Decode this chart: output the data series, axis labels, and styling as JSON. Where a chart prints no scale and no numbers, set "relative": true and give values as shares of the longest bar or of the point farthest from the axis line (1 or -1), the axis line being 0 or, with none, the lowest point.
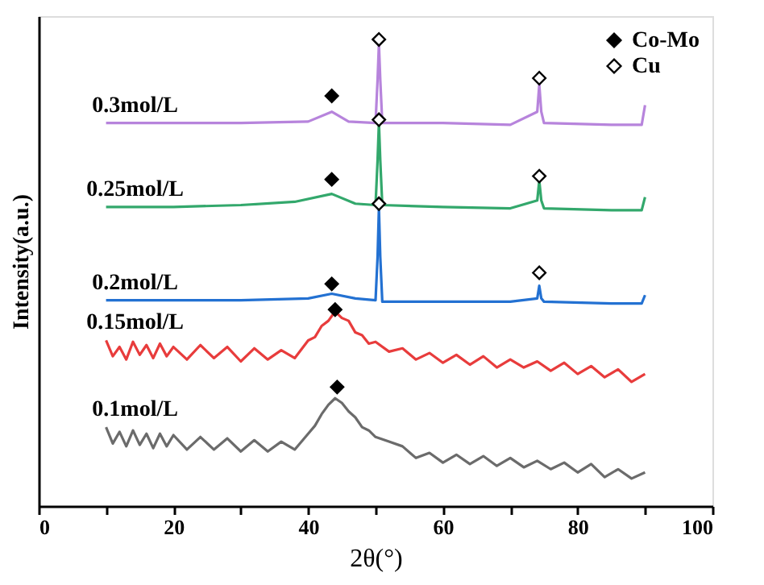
{
  "chart_data": {
    "type": "line",
    "relative": true,
    "xlabel": "2θ(°)",
    "ylabel": "Intensity(a.u.)",
    "xlim": [
      0,
      100
    ],
    "xticks": [
      0,
      {
        "value": 10,
        "label": null
      },
      20,
      {
        "value": 30,
        "label": null
      },
      40,
      {
        "value": 50,
        "label": null
      },
      60,
      {
        "value": 70,
        "label": null
      },
      80,
      {
        "value": 90,
        "label": null
      },
      100
    ],
    "grid": false,
    "legend": "top right",
    "marker": "none",
    "line_style": "solid",
    "series": [
      {
        "name": "0.3mol/L",
        "color": "#b784dc",
        "x": [
          10,
          20,
          30,
          40,
          43.5,
          46,
          50,
          50.3,
          50.5,
          50.7,
          51,
          60,
          70,
          74,
          74.3,
          74.6,
          75,
          85,
          89.5,
          90
        ],
        "values": [
          0.821,
          0.821,
          0.821,
          0.824,
          0.845,
          0.824,
          0.821,
          0.914,
          0.99,
          0.914,
          0.821,
          0.821,
          0.817,
          0.845,
          0.903,
          0.845,
          0.821,
          0.817,
          0.817,
          0.859
        ]
      },
      {
        "name": "0.25mol/L",
        "color": "#33a86c",
        "x": [
          10,
          20,
          30,
          38,
          43.5,
          47,
          50,
          50.3,
          50.5,
          50.7,
          51,
          60,
          70,
          74,
          74.3,
          74.6,
          75,
          85,
          89.5,
          90
        ],
        "values": [
          0.641,
          0.641,
          0.645,
          0.652,
          0.669,
          0.648,
          0.645,
          0.741,
          0.821,
          0.741,
          0.645,
          0.641,
          0.638,
          0.655,
          0.697,
          0.655,
          0.638,
          0.634,
          0.634,
          0.662
        ]
      },
      {
        "name": "0.2mol/L",
        "color": "#2371d2",
        "x": [
          10,
          30,
          40,
          43.5,
          47,
          50,
          50.3,
          50.5,
          50.7,
          51,
          60,
          70,
          74,
          74.3,
          74.6,
          75,
          85,
          89.5,
          90
        ],
        "values": [
          0.441,
          0.441,
          0.445,
          0.455,
          0.445,
          0.441,
          0.534,
          0.638,
          0.534,
          0.438,
          0.438,
          0.438,
          0.445,
          0.472,
          0.445,
          0.438,
          0.434,
          0.434,
          0.452
        ]
      },
      {
        "name": "0.15mol/L",
        "color": "#e83c3c",
        "x": [
          10,
          11,
          12,
          13,
          14,
          15,
          16,
          17,
          18,
          19,
          20,
          22,
          24,
          26,
          28,
          30,
          32,
          34,
          36,
          38,
          40,
          41,
          42,
          43,
          44,
          45,
          46,
          47,
          48,
          49,
          50,
          52,
          54,
          56,
          58,
          60,
          62,
          64,
          66,
          68,
          70,
          72,
          74,
          76,
          78,
          80,
          82,
          84,
          86,
          88,
          90
        ],
        "values": [
          0.355,
          0.321,
          0.341,
          0.314,
          0.352,
          0.324,
          0.345,
          0.317,
          0.348,
          0.321,
          0.341,
          0.314,
          0.345,
          0.317,
          0.341,
          0.31,
          0.338,
          0.314,
          0.334,
          0.317,
          0.355,
          0.362,
          0.386,
          0.397,
          0.417,
          0.403,
          0.397,
          0.372,
          0.366,
          0.348,
          0.352,
          0.331,
          0.338,
          0.314,
          0.328,
          0.307,
          0.324,
          0.303,
          0.321,
          0.297,
          0.314,
          0.297,
          0.31,
          0.29,
          0.307,
          0.283,
          0.3,
          0.276,
          0.293,
          0.266,
          0.283
        ]
      },
      {
        "name": "0.1mol/L",
        "color": "#6b6b6b",
        "x": [
          10,
          11,
          12,
          13,
          14,
          15,
          16,
          17,
          18,
          19,
          20,
          22,
          24,
          26,
          28,
          30,
          32,
          34,
          36,
          38,
          40,
          41,
          42,
          43,
          44,
          45,
          46,
          47,
          48,
          49,
          50,
          52,
          54,
          56,
          58,
          60,
          62,
          64,
          66,
          68,
          70,
          72,
          74,
          76,
          78,
          80,
          82,
          84,
          86,
          88,
          90
        ],
        "values": [
          0.169,
          0.134,
          0.159,
          0.128,
          0.162,
          0.131,
          0.155,
          0.124,
          0.155,
          0.128,
          0.152,
          0.121,
          0.148,
          0.121,
          0.145,
          0.117,
          0.141,
          0.117,
          0.138,
          0.121,
          0.155,
          0.172,
          0.197,
          0.217,
          0.231,
          0.221,
          0.203,
          0.19,
          0.169,
          0.162,
          0.148,
          0.138,
          0.128,
          0.103,
          0.114,
          0.093,
          0.11,
          0.09,
          0.107,
          0.086,
          0.103,
          0.083,
          0.097,
          0.079,
          0.093,
          0.072,
          0.09,
          0.062,
          0.079,
          0.059,
          0.072
        ]
      },
      {
        "name": "Co-Mo",
        "type": "scatter",
        "marker": "diamond",
        "color": "#000000",
        "x": [
          43.5,
          43.5,
          43.5,
          44,
          44.3
        ],
        "values": [
          0.879,
          0.7,
          0.476,
          0.421,
          0.255
        ]
      },
      {
        "name": "Cu",
        "type": "scatter",
        "marker": "diamond",
        "color": "#ffffff",
        "x": [
          50.5,
          50.5,
          50.5,
          74.3,
          74.3,
          74.3
        ],
        "values": [
          1.0,
          0.828,
          0.648,
          0.917,
          0.707,
          0.5
        ]
      }
    ]
  }
}
